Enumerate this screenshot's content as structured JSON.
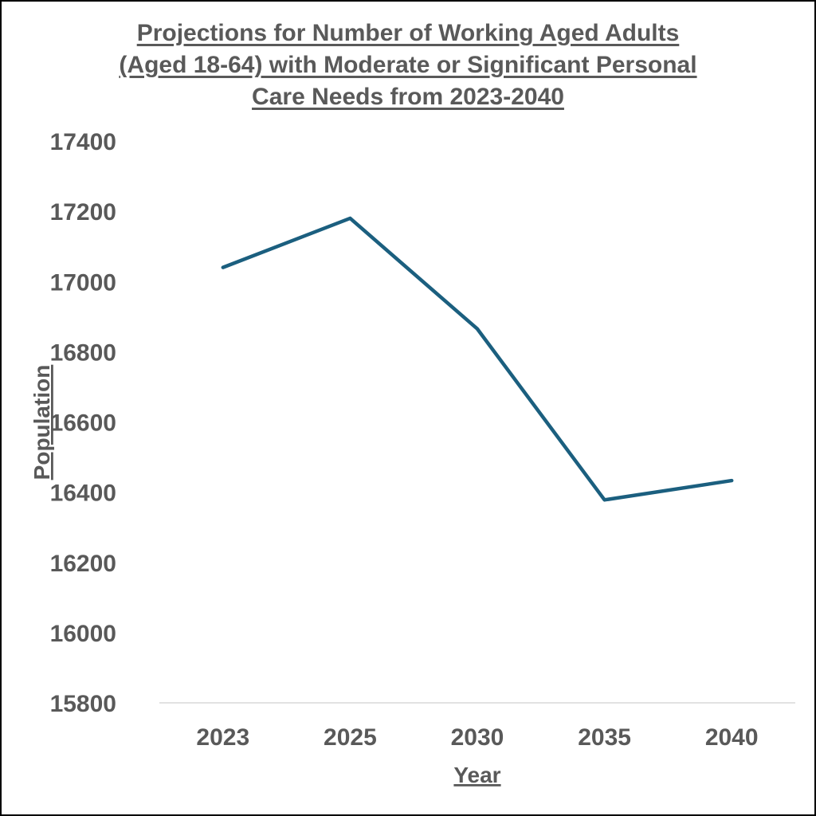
{
  "chart_data": {
    "type": "line",
    "title_lines": [
      "Projections for Number of Working Aged Adults",
      "(Aged 18-64) with Moderate or Significant Personal",
      "Care Needs from 2023-2040"
    ],
    "xlabel": "Year",
    "ylabel": "Population",
    "categories": [
      "2023",
      "2025",
      "2030",
      "2035",
      "2040"
    ],
    "y_ticks": [
      "15800",
      "16000",
      "16200",
      "16400",
      "16600",
      "16800",
      "17000",
      "17200",
      "17400"
    ],
    "ylim": [
      15800,
      17400
    ],
    "series": [
      {
        "values": [
          17040,
          17180,
          16865,
          16378,
          16433
        ]
      }
    ],
    "grid": false,
    "colors": {
      "line": "#1b5f7f",
      "axis": "#d9d9d9",
      "text": "#595959"
    }
  }
}
